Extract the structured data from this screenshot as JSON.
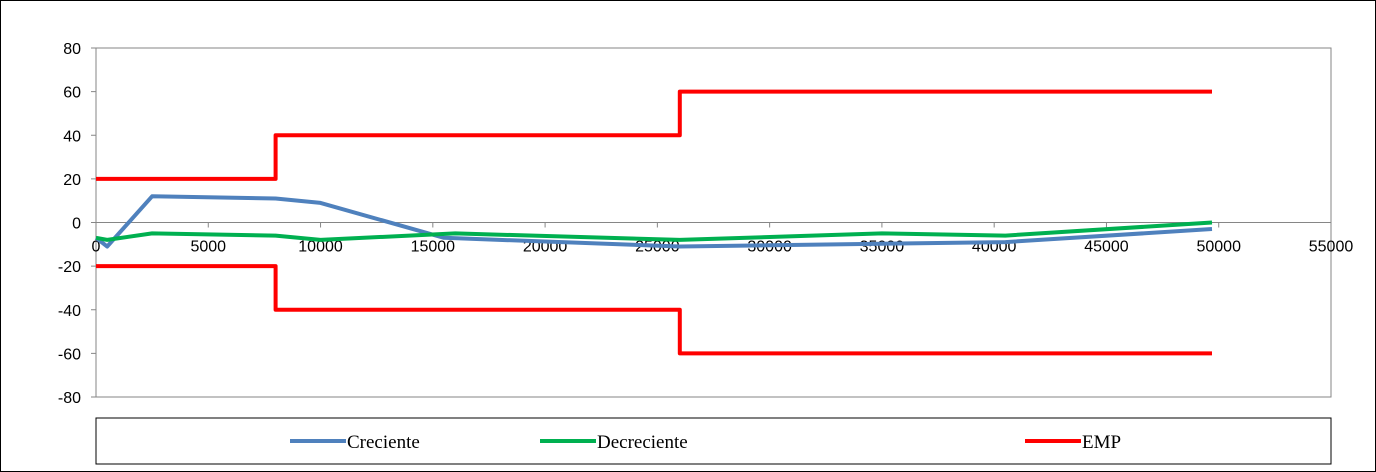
{
  "chart_data": {
    "type": "line",
    "title": "",
    "xlabel": "",
    "ylabel": "",
    "xlim": [
      0,
      55000
    ],
    "ylim": [
      -80,
      80
    ],
    "x_ticks": [
      0,
      5000,
      10000,
      15000,
      20000,
      25000,
      30000,
      35000,
      40000,
      45000,
      50000,
      55000
    ],
    "y_ticks": [
      80,
      60,
      40,
      20,
      0,
      -20,
      -40,
      -60,
      -80
    ],
    "grid": false,
    "legend_position": "bottom",
    "series": [
      {
        "name": "Creciente",
        "color": "#4F81BD",
        "points": [
          [
            0,
            -7
          ],
          [
            500,
            -11
          ],
          [
            2500,
            12
          ],
          [
            8000,
            11
          ],
          [
            10000,
            9
          ],
          [
            15500,
            -7
          ],
          [
            26000,
            -11
          ],
          [
            40500,
            -9
          ],
          [
            49700,
            -3
          ]
        ]
      },
      {
        "name": "Decreciente",
        "color": "#00B050",
        "points": [
          [
            0,
            -7
          ],
          [
            500,
            -8
          ],
          [
            2500,
            -5
          ],
          [
            8000,
            -6
          ],
          [
            10000,
            -8
          ],
          [
            16000,
            -5
          ],
          [
            26000,
            -8
          ],
          [
            35000,
            -5
          ],
          [
            40500,
            -6
          ],
          [
            49700,
            0
          ]
        ]
      },
      {
        "name": "EMP",
        "color": "#FF0000",
        "points": [
          [
            0,
            20
          ],
          [
            8000,
            20
          ],
          [
            8000,
            40
          ],
          [
            26000,
            40
          ],
          [
            26000,
            60
          ],
          [
            49700,
            60
          ]
        ]
      },
      {
        "name": "EMP",
        "color": "#FF0000",
        "show_in_legend": false,
        "points": [
          [
            0,
            -20
          ],
          [
            8000,
            -20
          ],
          [
            8000,
            -40
          ],
          [
            26000,
            -40
          ],
          [
            26000,
            -60
          ],
          [
            49700,
            -60
          ]
        ]
      }
    ]
  }
}
